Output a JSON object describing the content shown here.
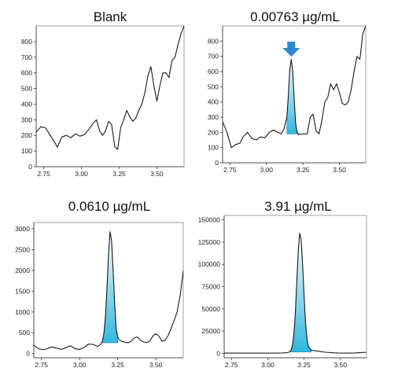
{
  "colors": {
    "trace": "#1a1a1a",
    "peak_fill_top": "#ffffff",
    "peak_fill_bottom": "#2fb7de",
    "arrow": "#2f88cf"
  },
  "chart_data": [
    {
      "type": "line",
      "title": "Blank",
      "xlim": [
        2.7,
        3.68
      ],
      "ylim": [
        0,
        900
      ],
      "xticks": [
        "2.75",
        "3.00",
        "3.25",
        "3.50"
      ],
      "yticks": [
        "0",
        "100",
        "200",
        "300",
        "400",
        "500",
        "600",
        "700",
        "800"
      ],
      "x": [
        2.7,
        2.73,
        2.76,
        2.79,
        2.82,
        2.84,
        2.87,
        2.9,
        2.93,
        2.96,
        2.99,
        3.02,
        3.05,
        3.08,
        3.1,
        3.12,
        3.14,
        3.16,
        3.18,
        3.2,
        3.22,
        3.24,
        3.26,
        3.28,
        3.3,
        3.32,
        3.34,
        3.36,
        3.38,
        3.4,
        3.42,
        3.44,
        3.46,
        3.48,
        3.5,
        3.52,
        3.54,
        3.56,
        3.58,
        3.6,
        3.62,
        3.64,
        3.66,
        3.68
      ],
      "y": [
        220,
        255,
        250,
        205,
        160,
        125,
        190,
        200,
        185,
        210,
        195,
        205,
        240,
        280,
        300,
        230,
        200,
        230,
        290,
        270,
        130,
        110,
        250,
        300,
        360,
        320,
        290,
        310,
        360,
        400,
        470,
        580,
        640,
        520,
        420,
        520,
        600,
        600,
        570,
        680,
        700,
        780,
        850,
        900
      ],
      "highlight": null
    },
    {
      "type": "line",
      "title": "0.00763 µg/mL",
      "xlim": [
        2.7,
        3.68
      ],
      "ylim": [
        0,
        900
      ],
      "xticks": [
        "2.75",
        "3.00",
        "3.25",
        "3.50"
      ],
      "yticks": [
        "0",
        "100",
        "200",
        "300",
        "400",
        "500",
        "600",
        "700",
        "800"
      ],
      "x": [
        2.7,
        2.73,
        2.76,
        2.79,
        2.82,
        2.84,
        2.87,
        2.9,
        2.93,
        2.96,
        2.99,
        3.02,
        3.05,
        3.08,
        3.1,
        3.12,
        3.14,
        3.15,
        3.16,
        3.17,
        3.18,
        3.19,
        3.2,
        3.21,
        3.22,
        3.24,
        3.26,
        3.28,
        3.3,
        3.32,
        3.34,
        3.36,
        3.38,
        3.4,
        3.42,
        3.44,
        3.46,
        3.48,
        3.5,
        3.52,
        3.54,
        3.56,
        3.58,
        3.6,
        3.62,
        3.64,
        3.66,
        3.68
      ],
      "y": [
        270,
        200,
        100,
        120,
        130,
        170,
        200,
        160,
        150,
        170,
        165,
        200,
        215,
        200,
        190,
        220,
        300,
        440,
        610,
        680,
        600,
        420,
        260,
        200,
        185,
        190,
        190,
        190,
        300,
        320,
        210,
        190,
        280,
        400,
        430,
        520,
        480,
        520,
        460,
        390,
        380,
        400,
        480,
        600,
        700,
        680,
        850,
        900
      ],
      "highlight": {
        "from": 3.13,
        "to": 3.22,
        "baseline": 190
      },
      "marker": "arrow-down",
      "marker_x": 3.17
    },
    {
      "type": "line",
      "title": "0.0610 µg/mL",
      "xlim": [
        2.7,
        3.68
      ],
      "ylim": [
        -100,
        3150
      ],
      "xticks": [
        "2.75",
        "3.00",
        "3.25",
        "3.50"
      ],
      "yticks": [
        "0",
        "500",
        "1000",
        "1500",
        "2000",
        "2500",
        "3000"
      ],
      "x": [
        2.7,
        2.73,
        2.76,
        2.79,
        2.82,
        2.85,
        2.88,
        2.91,
        2.94,
        2.97,
        3.0,
        3.03,
        3.06,
        3.09,
        3.12,
        3.14,
        3.15,
        3.16,
        3.17,
        3.18,
        3.19,
        3.2,
        3.21,
        3.22,
        3.23,
        3.24,
        3.25,
        3.26,
        3.28,
        3.3,
        3.32,
        3.34,
        3.36,
        3.38,
        3.4,
        3.42,
        3.44,
        3.46,
        3.48,
        3.5,
        3.52,
        3.54,
        3.56,
        3.58,
        3.6,
        3.62,
        3.64,
        3.66,
        3.68
      ],
      "y": [
        200,
        120,
        90,
        120,
        160,
        130,
        100,
        140,
        190,
        120,
        100,
        150,
        230,
        220,
        170,
        230,
        300,
        500,
        900,
        1600,
        2400,
        2930,
        2700,
        2000,
        1200,
        600,
        400,
        330,
        290,
        270,
        260,
        300,
        380,
        400,
        320,
        280,
        260,
        300,
        420,
        480,
        420,
        300,
        320,
        430,
        600,
        800,
        1000,
        1400,
        2000
      ],
      "highlight": {
        "from": 3.15,
        "to": 3.25,
        "baseline": 260
      },
      "marker": null
    },
    {
      "type": "line",
      "title": "3.91 µg/mL",
      "xlim": [
        2.7,
        3.68
      ],
      "ylim": [
        -5000,
        155000
      ],
      "xticks": [
        "2.75",
        "3.00",
        "3.25",
        "3.50"
      ],
      "yticks": [
        "0",
        "25000",
        "50000",
        "75000",
        "100000",
        "125000",
        "150000"
      ],
      "x": [
        2.7,
        2.8,
        2.9,
        3.0,
        3.06,
        3.1,
        3.13,
        3.15,
        3.16,
        3.17,
        3.18,
        3.19,
        3.2,
        3.21,
        3.22,
        3.23,
        3.24,
        3.25,
        3.26,
        3.27,
        3.28,
        3.3,
        3.33,
        3.36,
        3.4,
        3.45,
        3.5,
        3.55,
        3.6,
        3.64,
        3.68
      ],
      "y": [
        200,
        200,
        200,
        200,
        250,
        350,
        700,
        1500,
        3500,
        9000,
        22000,
        45000,
        80000,
        115000,
        135000,
        128000,
        100000,
        65000,
        35000,
        16000,
        7500,
        3500,
        2800,
        2200,
        1200,
        600,
        300,
        250,
        350,
        800,
        1200
      ],
      "highlight": {
        "from": 3.15,
        "to": 3.31,
        "baseline": 1500
      },
      "marker": null
    }
  ]
}
